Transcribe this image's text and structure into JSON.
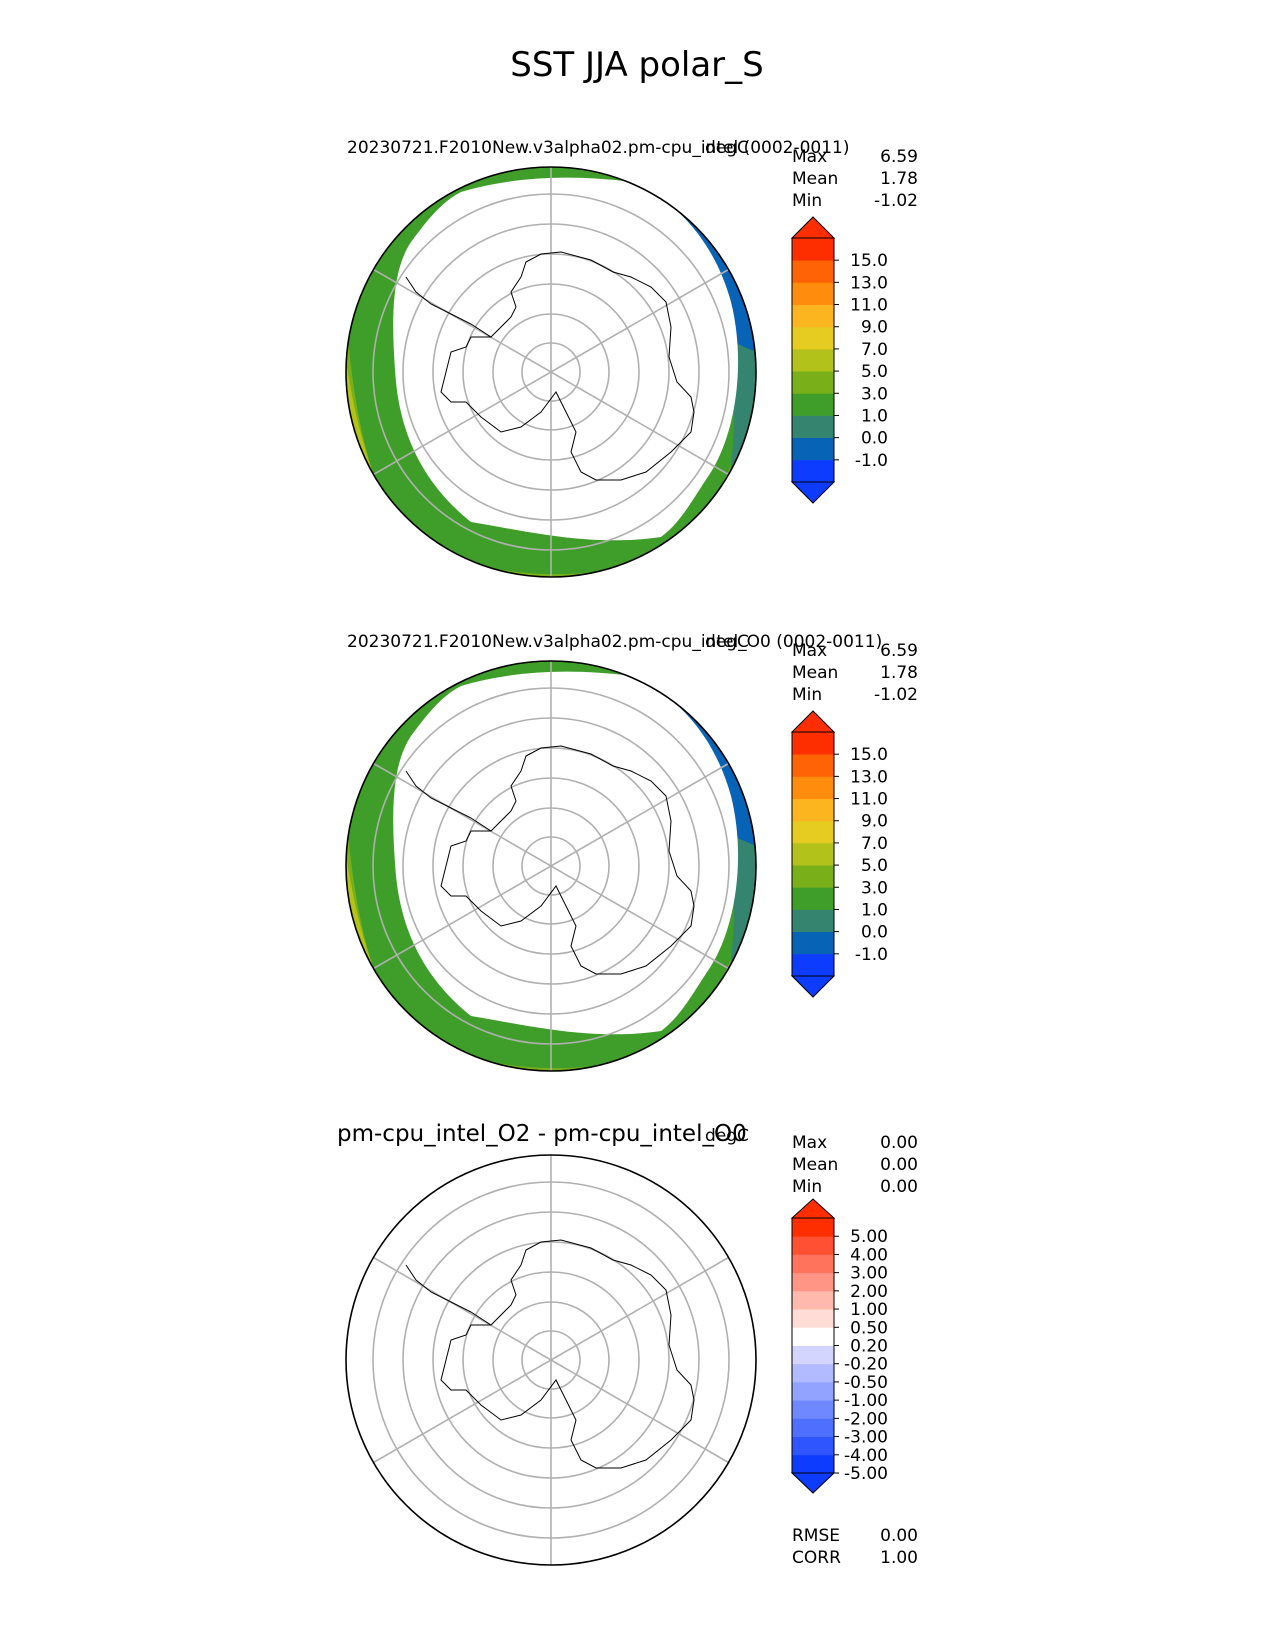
{
  "figure": {
    "title": "SST JJA polar_S"
  },
  "colors": {
    "ref_levels_colors": [
      "#0d3cff",
      "#0763b5",
      "#35846f",
      "#3f9e2a",
      "#79b01a",
      "#b3c21a",
      "#e6cc20",
      "#fcb41f",
      "#ff8c0d",
      "#ff6305",
      "#ff2e00"
    ],
    "diff_levels_colors": [
      "#0d3cff",
      "#2e55ff",
      "#4f6fff",
      "#7088ff",
      "#91a2ff",
      "#b2bbff",
      "#d3d5ff",
      "#ffffff",
      "#ffdcd6",
      "#ffb9ad",
      "#ff9685",
      "#ff735c",
      "#ff5033",
      "#ff2e00"
    ],
    "graticule": "#b0b0b0",
    "coast": "#000000"
  },
  "chart_data": [
    {
      "type": "heatmap",
      "title": "20230721.F2010New.v3alpha02.pm-cpu_intel (0002-0011)",
      "units": "degC",
      "projection": "south polar stereographic",
      "stats": [
        {
          "label": "Max",
          "value": "6.59"
        },
        {
          "label": "Mean",
          "value": "1.78"
        },
        {
          "label": "Min",
          "value": "-1.02"
        }
      ],
      "colorbar": {
        "extend": "both",
        "tick_labels": [
          "15.0",
          "13.0",
          "11.0",
          "9.0",
          "7.0",
          "5.0",
          "3.0",
          "1.0",
          "0.0",
          "-1.0"
        ]
      }
    },
    {
      "type": "heatmap",
      "title": "20230721.F2010New.v3alpha02.pm-cpu_intel_O0 (0002-0011)",
      "units": "degC",
      "projection": "south polar stereographic",
      "stats": [
        {
          "label": "Max",
          "value": "6.59"
        },
        {
          "label": "Mean",
          "value": "1.78"
        },
        {
          "label": "Min",
          "value": "-1.02"
        }
      ],
      "colorbar": {
        "extend": "both",
        "tick_labels": [
          "15.0",
          "13.0",
          "11.0",
          "9.0",
          "7.0",
          "5.0",
          "3.0",
          "1.0",
          "0.0",
          "-1.0"
        ]
      }
    },
    {
      "type": "heatmap",
      "title": "pm-cpu_intel_O2 - pm-cpu_intel_O0",
      "units": "degC",
      "projection": "south polar stereographic",
      "stats": [
        {
          "label": "Max",
          "value": "0.00"
        },
        {
          "label": "Mean",
          "value": "0.00"
        },
        {
          "label": "Min",
          "value": "0.00"
        }
      ],
      "colorbar": {
        "extend": "both",
        "tick_labels": [
          "5.00",
          "4.00",
          "3.00",
          "2.00",
          "1.00",
          "0.50",
          "0.20",
          "-0.20",
          "-0.50",
          "-1.00",
          "-2.00",
          "-3.00",
          "-4.00",
          "-5.00"
        ]
      },
      "bottom_stats": [
        {
          "label": "RMSE",
          "value": "0.00"
        },
        {
          "label": "CORR",
          "value": "1.00"
        }
      ]
    }
  ]
}
